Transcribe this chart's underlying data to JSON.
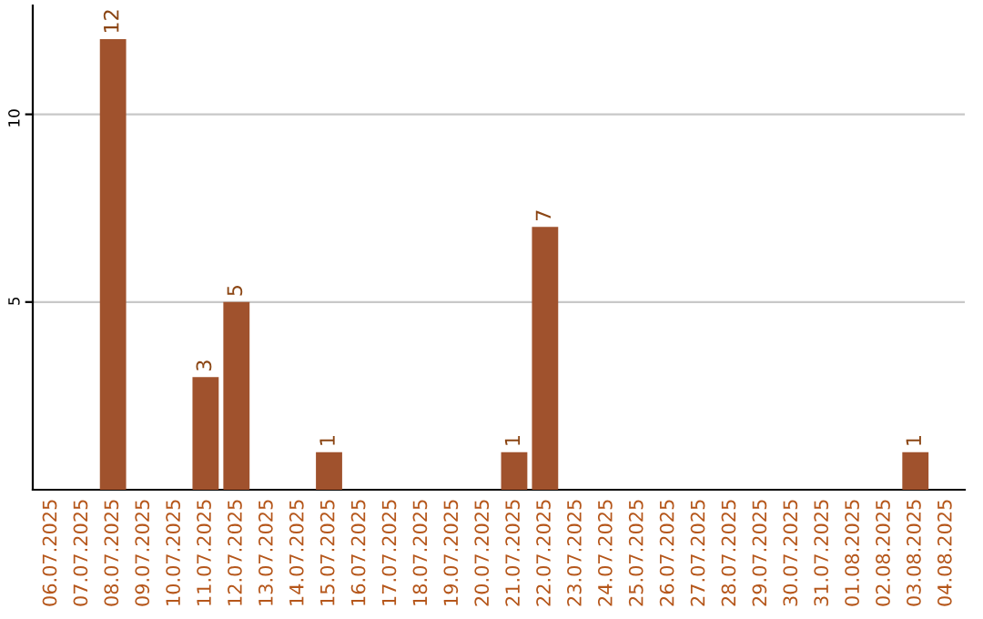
{
  "chart_data": {
    "type": "bar",
    "categories": [
      "06.07.2025",
      "07.07.2025",
      "08.07.2025",
      "09.07.2025",
      "10.07.2025",
      "11.07.2025",
      "12.07.2025",
      "13.07.2025",
      "14.07.2025",
      "15.07.2025",
      "16.07.2025",
      "17.07.2025",
      "18.07.2025",
      "19.07.2025",
      "20.07.2025",
      "21.07.2025",
      "22.07.2025",
      "23.07.2025",
      "24.07.2025",
      "25.07.2025",
      "26.07.2025",
      "27.07.2025",
      "28.07.2025",
      "29.07.2025",
      "30.07.2025",
      "31.07.2025",
      "01.08.2025",
      "02.08.2025",
      "03.08.2025",
      "04.08.2025"
    ],
    "values": [
      0,
      0,
      12,
      0,
      0,
      3,
      5,
      0,
      0,
      1,
      0,
      0,
      0,
      0,
      0,
      1,
      7,
      0,
      0,
      0,
      0,
      0,
      0,
      0,
      0,
      0,
      0,
      0,
      1,
      0
    ],
    "value_labels": [
      null,
      null,
      "12",
      null,
      null,
      "3",
      "5",
      null,
      null,
      "1",
      null,
      null,
      null,
      null,
      null,
      "1",
      "7",
      null,
      null,
      null,
      null,
      null,
      null,
      null,
      null,
      null,
      null,
      null,
      "1",
      null
    ],
    "color": "#a0522d",
    "ylim": [
      0,
      12.9
    ],
    "yticks": [
      5,
      10
    ],
    "grid": "y"
  }
}
